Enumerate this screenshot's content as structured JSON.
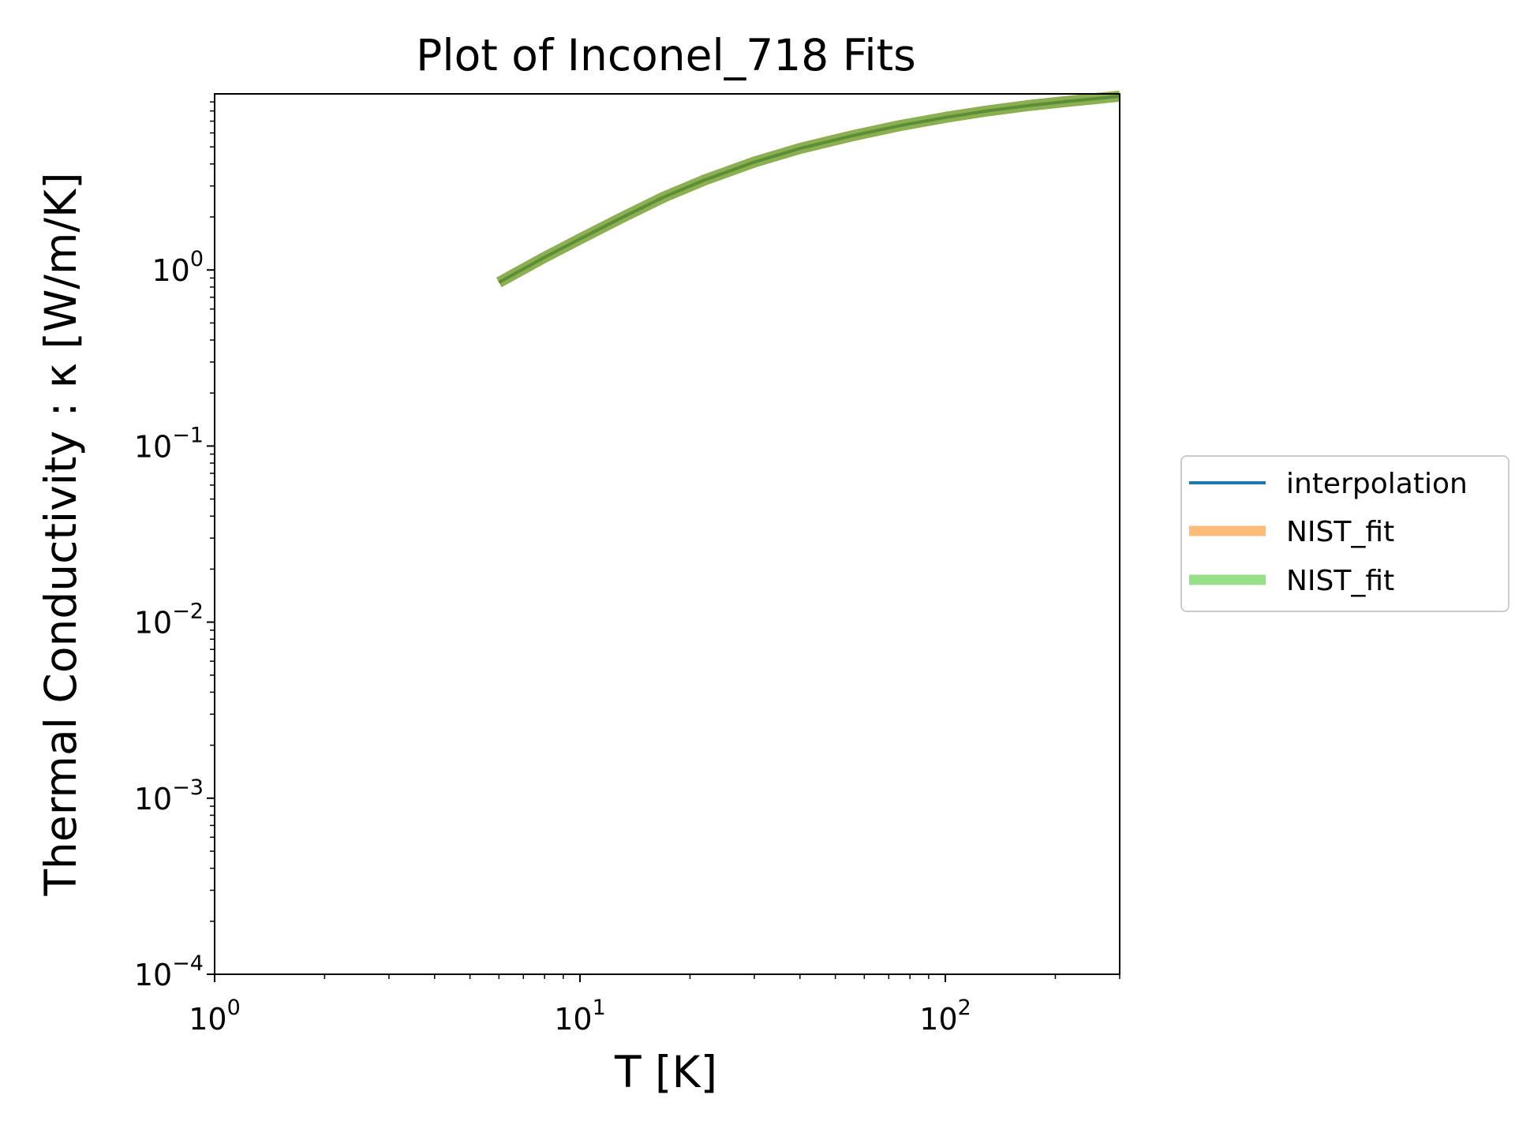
{
  "chart_data": {
    "type": "line",
    "title": "Plot of Inconel_718 Fits",
    "xlabel": "T [K]",
    "ylabel": "Thermal Conductivity : κ [W/m/K]",
    "xscale": "log",
    "yscale": "log",
    "xlim": [
      1,
      300
    ],
    "ylim": [
      0.0001,
      10
    ],
    "grid": false,
    "legend_position": "right",
    "x_ticks": [
      {
        "value": 1,
        "base": "10",
        "exp": "0"
      },
      {
        "value": 10,
        "base": "10",
        "exp": "1"
      },
      {
        "value": 100,
        "base": "10",
        "exp": "2"
      }
    ],
    "y_ticks": [
      {
        "value": 0.0001,
        "base": "10",
        "exp": "−4"
      },
      {
        "value": 0.001,
        "base": "10",
        "exp": "−3"
      },
      {
        "value": 0.01,
        "base": "10",
        "exp": "−2"
      },
      {
        "value": 0.1,
        "base": "10",
        "exp": "−1"
      },
      {
        "value": 1,
        "base": "10",
        "exp": "0"
      }
    ],
    "x": [
      6,
      8,
      10,
      13,
      17,
      22,
      30,
      40,
      55,
      75,
      100,
      130,
      170,
      220,
      300
    ],
    "series": [
      {
        "name": "interpolation",
        "color": "#1f77b4",
        "values": [
          0.85,
          1.18,
          1.5,
          1.98,
          2.6,
          3.25,
          4.1,
          4.9,
          5.75,
          6.6,
          7.35,
          8.0,
          8.6,
          9.1,
          9.7
        ]
      },
      {
        "name": "NIST_fit",
        "color": "#ffbb78",
        "values": [
          0.85,
          1.18,
          1.5,
          1.98,
          2.6,
          3.25,
          4.1,
          4.9,
          5.75,
          6.6,
          7.35,
          8.0,
          8.6,
          9.1,
          9.7
        ]
      },
      {
        "name": "NIST_fit",
        "color": "#98df8a",
        "values": [
          0.85,
          1.18,
          1.5,
          1.98,
          2.6,
          3.25,
          4.1,
          4.9,
          5.75,
          6.6,
          7.35,
          8.0,
          8.6,
          9.1,
          9.7
        ]
      }
    ],
    "visible_line_color": "#5a8f36",
    "visible_halo_color": "#8caf52"
  }
}
